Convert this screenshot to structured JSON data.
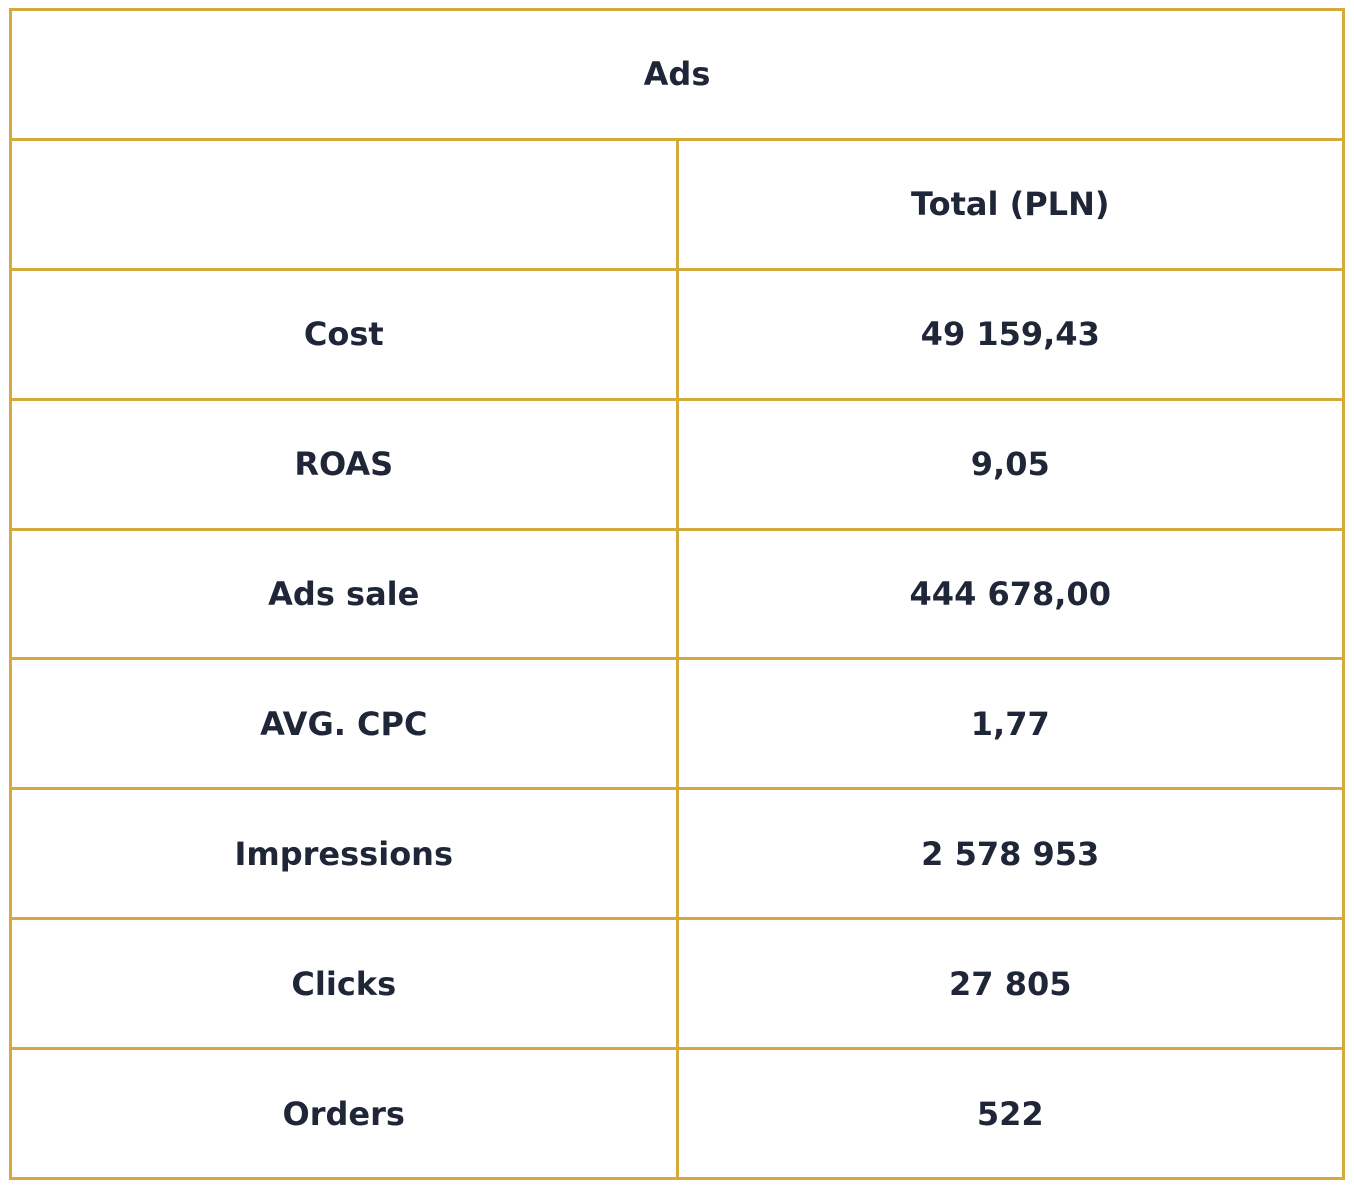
{
  "table": {
    "title": "Ads",
    "header": [
      "Total (PLN)"
    ],
    "rows": [
      [
        "Cost",
        "49 159,43"
      ],
      [
        "ROAS",
        "9,05"
      ],
      [
        "Ads sale",
        "444 678,00"
      ],
      [
        "AVG. CPC",
        "1,77"
      ],
      [
        "Impressions",
        "2 578 953"
      ],
      [
        "Clicks",
        "27 805"
      ],
      [
        "Orders",
        "522"
      ]
    ]
  }
}
